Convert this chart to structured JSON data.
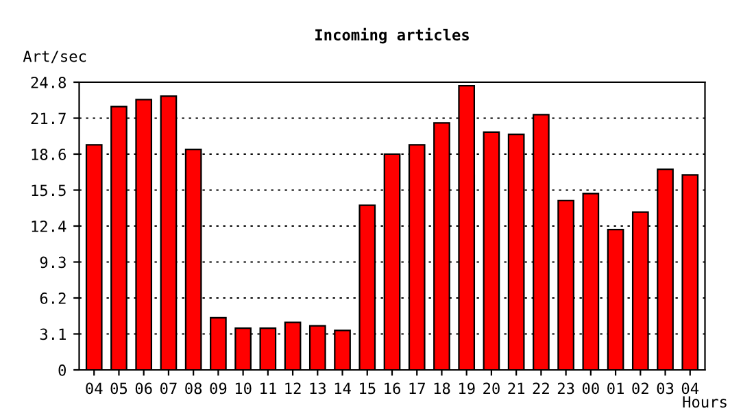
{
  "chart_data": {
    "type": "bar",
    "title": "Incoming articles",
    "ylabel": "Art/sec",
    "xlabel": "Hours",
    "categories": [
      "04",
      "05",
      "06",
      "07",
      "08",
      "09",
      "10",
      "11",
      "12",
      "13",
      "14",
      "15",
      "16",
      "17",
      "18",
      "19",
      "20",
      "21",
      "22",
      "23",
      "00",
      "01",
      "02",
      "03",
      "04"
    ],
    "values": [
      19.4,
      22.7,
      23.3,
      23.6,
      19.0,
      4.5,
      3.6,
      3.6,
      4.1,
      3.8,
      3.4,
      14.2,
      18.6,
      19.4,
      21.3,
      24.5,
      20.5,
      20.3,
      22.0,
      14.6,
      15.2,
      12.1,
      13.6,
      17.3,
      16.8
    ],
    "color": "#ff0000",
    "ylim": [
      0,
      24.8
    ],
    "yticks": [
      0,
      3.1,
      6.2,
      9.3,
      12.4,
      15.5,
      18.6,
      21.7,
      24.8
    ],
    "grid": "y",
    "legend": false
  }
}
